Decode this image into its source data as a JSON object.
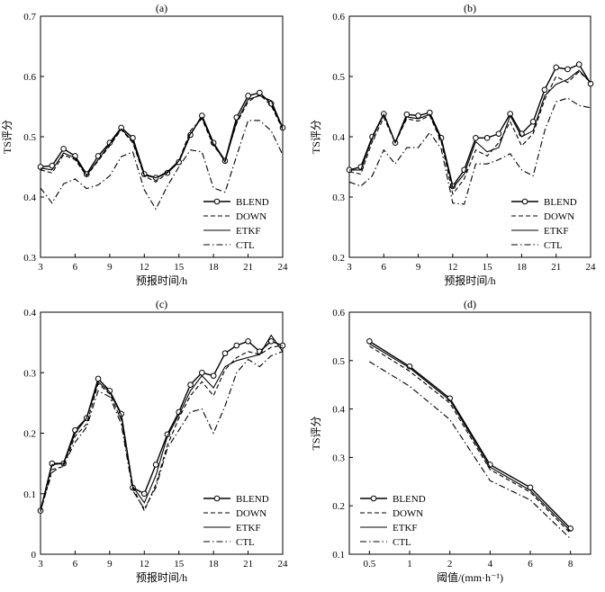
{
  "chart_data": [
    {
      "type": "line",
      "title": "(a)",
      "xlabel": "预报时间/h",
      "ylabel": "TS评分",
      "xlim": [
        3,
        24
      ],
      "ylim": [
        0.3,
        0.7
      ],
      "xticks": [
        3,
        6,
        9,
        12,
        15,
        18,
        21,
        24
      ],
      "yticks": [
        0.3,
        0.4,
        0.5,
        0.6,
        0.7
      ],
      "ytick_labels": [
        "0.3",
        "0.4",
        "0.5",
        "0.6",
        "0.7"
      ],
      "legend_position": "bottom-right",
      "x": [
        3,
        4,
        5,
        6,
        7,
        8,
        9,
        10,
        11,
        12,
        13,
        14,
        15,
        16,
        17,
        18,
        19,
        20,
        21,
        22,
        23,
        24
      ],
      "series": [
        {
          "name": "BLEND",
          "style": "solid-circle",
          "values": [
            0.45,
            0.452,
            0.48,
            0.468,
            0.438,
            0.468,
            0.49,
            0.515,
            0.498,
            0.438,
            0.432,
            0.44,
            0.458,
            0.503,
            0.535,
            0.49,
            0.46,
            0.532,
            0.568,
            0.573,
            0.555,
            0.515
          ]
        },
        {
          "name": "DOWN",
          "style": "dashed",
          "values": [
            0.445,
            0.44,
            0.47,
            0.462,
            0.435,
            0.46,
            0.485,
            0.512,
            0.49,
            0.435,
            0.425,
            0.44,
            0.46,
            0.51,
            0.53,
            0.485,
            0.462,
            0.522,
            0.558,
            0.57,
            0.552,
            0.512
          ]
        },
        {
          "name": "ETKF",
          "style": "solid",
          "values": [
            0.448,
            0.445,
            0.473,
            0.465,
            0.436,
            0.462,
            0.488,
            0.513,
            0.493,
            0.436,
            0.432,
            0.442,
            0.46,
            0.505,
            0.532,
            0.488,
            0.458,
            0.525,
            0.562,
            0.568,
            0.56,
            0.515
          ]
        },
        {
          "name": "CTL",
          "style": "dashdot",
          "values": [
            0.415,
            0.39,
            0.422,
            0.43,
            0.414,
            0.42,
            0.435,
            0.467,
            0.475,
            0.412,
            0.38,
            0.418,
            0.45,
            0.478,
            0.475,
            0.415,
            0.408,
            0.468,
            0.527,
            0.527,
            0.51,
            0.47
          ]
        }
      ]
    },
    {
      "type": "line",
      "title": "(b)",
      "xlabel": "预报时间/h",
      "ylabel": "TS评分",
      "xlim": [
        3,
        24
      ],
      "ylim": [
        0.2,
        0.6
      ],
      "xticks": [
        3,
        6,
        9,
        12,
        15,
        18,
        21,
        24
      ],
      "yticks": [
        0.2,
        0.3,
        0.4,
        0.5,
        0.6
      ],
      "ytick_labels": [
        "0.2",
        "0.3",
        "0.4",
        "0.5",
        "0.6"
      ],
      "legend_position": "bottom-right",
      "x": [
        3,
        4,
        5,
        6,
        7,
        8,
        9,
        10,
        11,
        12,
        13,
        14,
        15,
        16,
        17,
        18,
        19,
        20,
        21,
        22,
        23,
        24
      ],
      "series": [
        {
          "name": "BLEND",
          "style": "solid-circle",
          "values": [
            0.345,
            0.35,
            0.4,
            0.438,
            0.39,
            0.437,
            0.435,
            0.44,
            0.398,
            0.318,
            0.345,
            0.398,
            0.398,
            0.405,
            0.438,
            0.405,
            0.425,
            0.478,
            0.515,
            0.512,
            0.52,
            0.488
          ]
        },
        {
          "name": "DOWN",
          "style": "dashed",
          "values": [
            0.342,
            0.338,
            0.392,
            0.432,
            0.39,
            0.43,
            0.426,
            0.435,
            0.392,
            0.305,
            0.33,
            0.378,
            0.368,
            0.39,
            0.425,
            0.385,
            0.405,
            0.462,
            0.5,
            0.49,
            0.508,
            0.49
          ]
        },
        {
          "name": "ETKF",
          "style": "solid",
          "values": [
            0.345,
            0.345,
            0.398,
            0.437,
            0.39,
            0.433,
            0.43,
            0.437,
            0.395,
            0.315,
            0.338,
            0.392,
            0.375,
            0.382,
            0.435,
            0.4,
            0.41,
            0.468,
            0.487,
            0.495,
            0.51,
            0.49
          ]
        },
        {
          "name": "CTL",
          "style": "dashdot",
          "values": [
            0.325,
            0.318,
            0.335,
            0.378,
            0.355,
            0.382,
            0.382,
            0.407,
            0.38,
            0.29,
            0.288,
            0.355,
            0.355,
            0.362,
            0.372,
            0.345,
            0.335,
            0.41,
            0.458,
            0.464,
            0.452,
            0.448
          ]
        }
      ]
    },
    {
      "type": "line",
      "title": "(c)",
      "xlabel": "预报时间/h",
      "ylabel": "",
      "xlim": [
        3,
        24
      ],
      "ylim": [
        0,
        0.4
      ],
      "xticks": [
        3,
        6,
        9,
        12,
        15,
        18,
        21,
        24
      ],
      "yticks": [
        0,
        0.1,
        0.2,
        0.3,
        0.4
      ],
      "ytick_labels": [
        "0",
        "0.1",
        "0.2",
        "0.3",
        "0.4"
      ],
      "legend_position": "bottom-right",
      "x": [
        3,
        4,
        5,
        6,
        7,
        8,
        9,
        10,
        11,
        12,
        13,
        14,
        15,
        16,
        17,
        18,
        19,
        20,
        21,
        22,
        23,
        24
      ],
      "series": [
        {
          "name": "BLEND",
          "style": "solid-circle",
          "values": [
            0.072,
            0.15,
            0.15,
            0.205,
            0.225,
            0.29,
            0.27,
            0.232,
            0.11,
            0.1,
            0.148,
            0.198,
            0.235,
            0.28,
            0.3,
            0.295,
            0.332,
            0.345,
            0.352,
            0.335,
            0.352,
            0.345
          ]
        },
        {
          "name": "DOWN",
          "style": "dashed",
          "values": [
            0.07,
            0.14,
            0.145,
            0.195,
            0.215,
            0.282,
            0.265,
            0.222,
            0.11,
            0.072,
            0.115,
            0.18,
            0.225,
            0.262,
            0.285,
            0.262,
            0.305,
            0.325,
            0.335,
            0.33,
            0.342,
            0.345
          ]
        },
        {
          "name": "ETKF",
          "style": "solid",
          "values": [
            0.072,
            0.148,
            0.15,
            0.2,
            0.225,
            0.285,
            0.268,
            0.23,
            0.112,
            0.085,
            0.13,
            0.195,
            0.23,
            0.27,
            0.295,
            0.275,
            0.31,
            0.32,
            0.325,
            0.33,
            0.362,
            0.335
          ]
        },
        {
          "name": "CTL",
          "style": "dashdot",
          "values": [
            0.072,
            0.135,
            0.148,
            0.185,
            0.21,
            0.27,
            0.26,
            0.215,
            0.105,
            0.075,
            0.11,
            0.175,
            0.205,
            0.235,
            0.24,
            0.2,
            0.245,
            0.3,
            0.322,
            0.31,
            0.328,
            0.335
          ]
        }
      ]
    },
    {
      "type": "line",
      "title": "(d)",
      "xlabel": "阈值/(mm·h⁻¹)",
      "ylabel": "TS评分",
      "ylim": [
        0.1,
        0.6
      ],
      "categories": [
        "0.5",
        "1",
        "2",
        "4",
        "6",
        "8"
      ],
      "yticks": [
        0.1,
        0.2,
        0.3,
        0.4,
        0.5,
        0.6
      ],
      "ytick_labels": [
        "0.1",
        "0.2",
        "0.3",
        "0.4",
        "0.5",
        "0.6"
      ],
      "legend_position": "bottom-left",
      "series": [
        {
          "name": "BLEND",
          "style": "solid-circle",
          "values": [
            0.54,
            0.488,
            0.422,
            0.285,
            0.238,
            0.153
          ]
        },
        {
          "name": "DOWN",
          "style": "dashed",
          "values": [
            0.53,
            0.478,
            0.412,
            0.275,
            0.228,
            0.143
          ]
        },
        {
          "name": "ETKF",
          "style": "solid",
          "values": [
            0.535,
            0.485,
            0.418,
            0.28,
            0.232,
            0.148
          ]
        },
        {
          "name": "CTL",
          "style": "dashdot",
          "values": [
            0.498,
            0.447,
            0.378,
            0.252,
            0.212,
            0.132
          ]
        }
      ]
    }
  ]
}
